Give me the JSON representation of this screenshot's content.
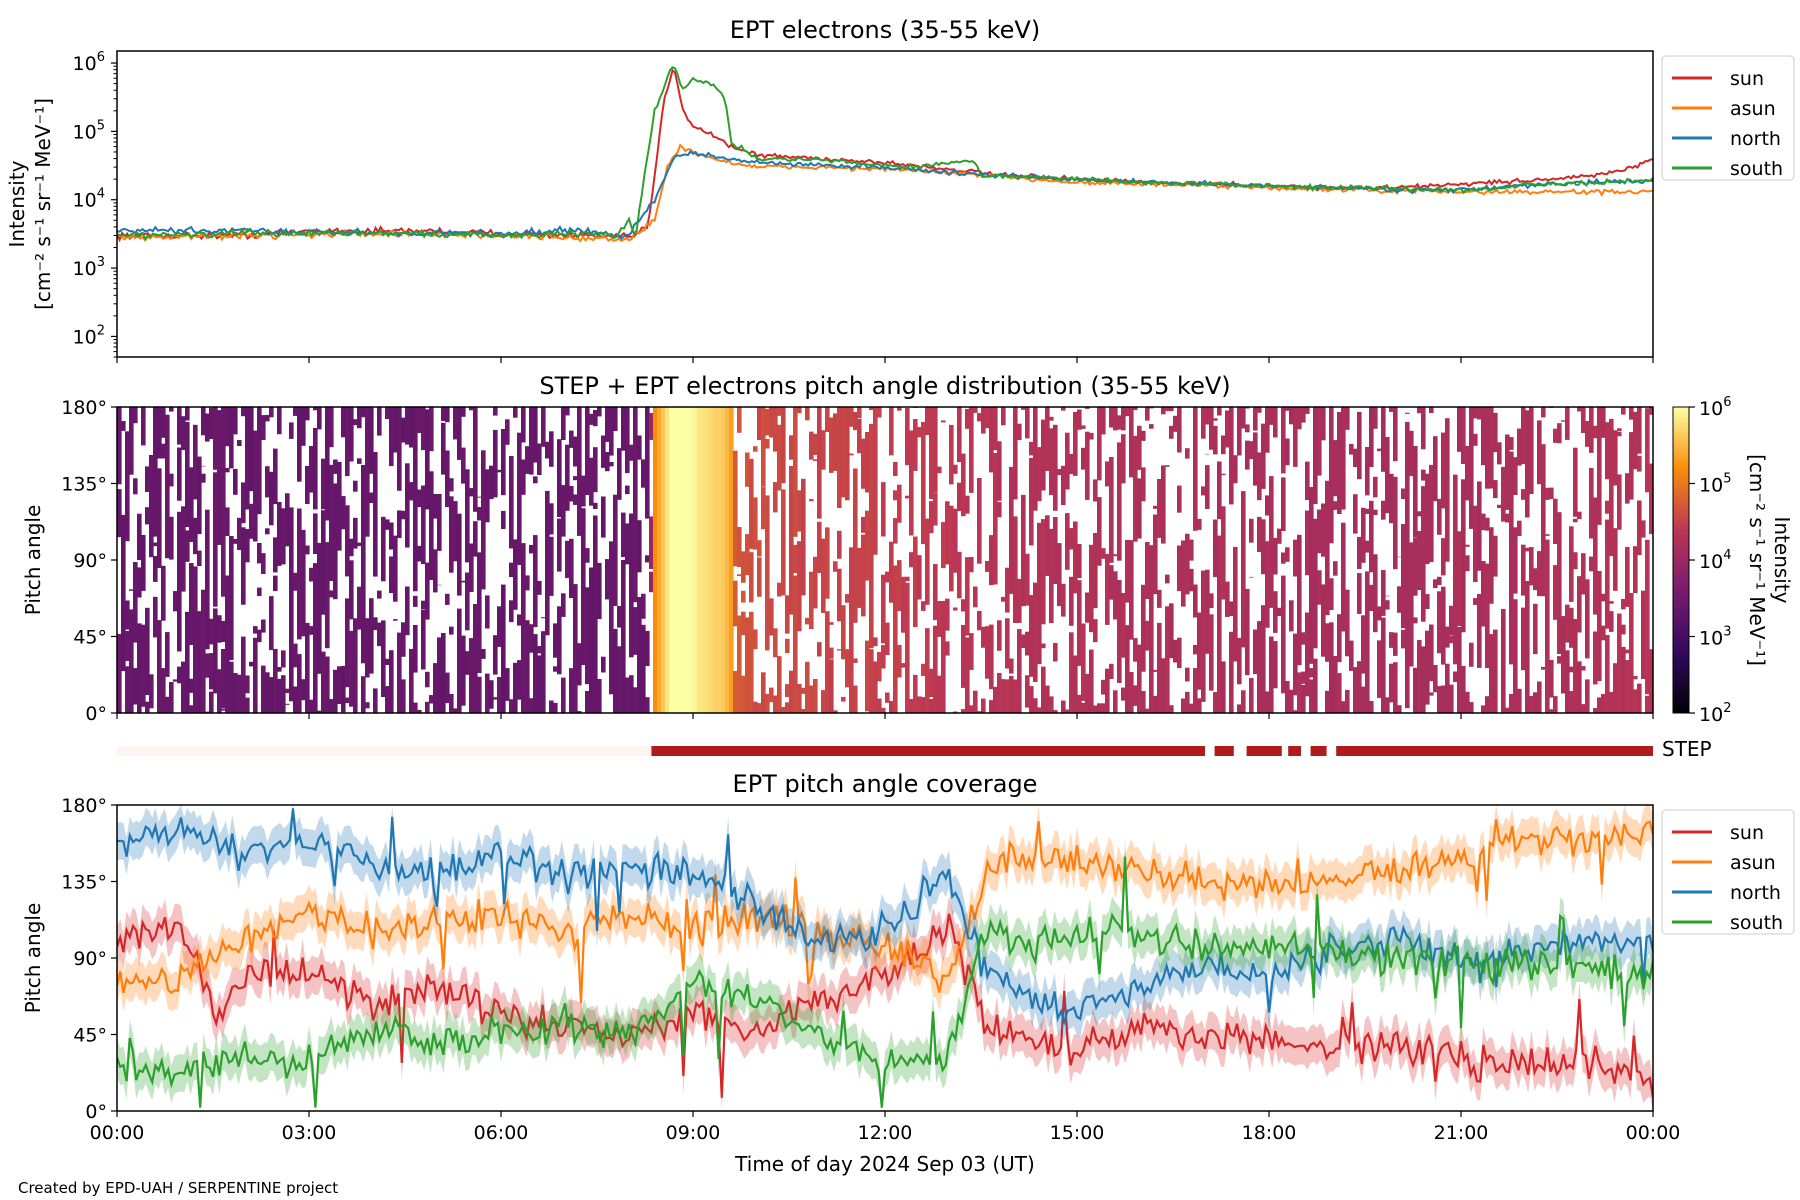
{
  "footer": "Created by EPD-UAH / SERPENTINE project",
  "chart_data": [
    {
      "type": "line",
      "title": "EPT electrons (35-55 keV)",
      "ylabel_line1": "Intensity",
      "ylabel_line2": "[cm⁻² s⁻¹ sr⁻¹ MeV⁻¹]",
      "yscale": "log",
      "ylim": [
        50,
        1500000
      ],
      "yticks": [
        {
          "v": 100,
          "b": "10",
          "e": "2"
        },
        {
          "v": 1000,
          "b": "10",
          "e": "3"
        },
        {
          "v": 10000,
          "b": "10",
          "e": "4"
        },
        {
          "v": 100000,
          "b": "10",
          "e": "5"
        },
        {
          "v": 1000000,
          "b": "10",
          "e": "6"
        }
      ],
      "xlim_hours": [
        0,
        24
      ],
      "legend_position": "outside-right",
      "series": [
        {
          "name": "sun",
          "color": "#d62728",
          "points": [
            [
              0,
              3000
            ],
            [
              2,
              3000
            ],
            [
              3,
              3500
            ],
            [
              4,
              3500
            ],
            [
              5,
              3500
            ],
            [
              6,
              3200
            ],
            [
              7,
              3000
            ],
            [
              8,
              2800
            ],
            [
              8.3,
              4000
            ],
            [
              8.55,
              300000
            ],
            [
              8.7,
              900000
            ],
            [
              8.85,
              200000
            ],
            [
              9,
              120000
            ],
            [
              9.3,
              90000
            ],
            [
              9.6,
              60000
            ],
            [
              10,
              45000
            ],
            [
              11,
              40000
            ],
            [
              12,
              35000
            ],
            [
              13,
              28000
            ],
            [
              14,
              22000
            ],
            [
              15,
              20000
            ],
            [
              16,
              18000
            ],
            [
              17,
              17000
            ],
            [
              18,
              16000
            ],
            [
              19,
              15000
            ],
            [
              20,
              15000
            ],
            [
              21,
              17000
            ],
            [
              22,
              19000
            ],
            [
              23,
              22000
            ],
            [
              23.6,
              28000
            ],
            [
              24,
              38000
            ]
          ]
        },
        {
          "name": "asun",
          "color": "#ff7f0e",
          "points": [
            [
              0,
              2800
            ],
            [
              2,
              3000
            ],
            [
              4,
              3200
            ],
            [
              6,
              3000
            ],
            [
              8,
              2600
            ],
            [
              8.4,
              5000
            ],
            [
              8.6,
              30000
            ],
            [
              8.8,
              60000
            ],
            [
              9,
              50000
            ],
            [
              9.3,
              40000
            ],
            [
              9.6,
              35000
            ],
            [
              10,
              30000
            ],
            [
              11,
              30000
            ],
            [
              12,
              28000
            ],
            [
              13,
              25000
            ],
            [
              14,
              21000
            ],
            [
              15,
              18000
            ],
            [
              16,
              17000
            ],
            [
              17,
              16000
            ],
            [
              18,
              15000
            ],
            [
              19,
              14000
            ],
            [
              20,
              13500
            ],
            [
              21,
              13000
            ],
            [
              22,
              13000
            ],
            [
              23,
              13000
            ],
            [
              24,
              13000
            ]
          ]
        },
        {
          "name": "north",
          "color": "#1f77b4",
          "points": [
            [
              0,
              3500
            ],
            [
              2,
              3500
            ],
            [
              4,
              3300
            ],
            [
              6,
              3200
            ],
            [
              7,
              3600
            ],
            [
              8,
              3000
            ],
            [
              8.4,
              10000
            ],
            [
              8.7,
              40000
            ],
            [
              9,
              50000
            ],
            [
              9.5,
              40000
            ],
            [
              10,
              35000
            ],
            [
              11,
              32000
            ],
            [
              12,
              30000
            ],
            [
              13,
              25000
            ],
            [
              14,
              22000
            ],
            [
              15,
              20000
            ],
            [
              16,
              18000
            ],
            [
              17,
              17000
            ],
            [
              18,
              16000
            ],
            [
              19,
              15000
            ],
            [
              20,
              14000
            ],
            [
              21,
              14000
            ],
            [
              22,
              16000
            ],
            [
              23,
              18000
            ],
            [
              24,
              19000
            ]
          ]
        },
        {
          "name": "south",
          "color": "#2ca02c",
          "points": [
            [
              0,
              3000
            ],
            [
              2,
              3200
            ],
            [
              4,
              3300
            ],
            [
              6,
              3000
            ],
            [
              7,
              3200
            ],
            [
              7.8,
              3000
            ],
            [
              8,
              5000
            ],
            [
              8.1,
              3000
            ],
            [
              8.4,
              200000
            ],
            [
              8.7,
              1000000
            ],
            [
              8.85,
              400000
            ],
            [
              9,
              600000
            ],
            [
              9.3,
              500000
            ],
            [
              9.5,
              300000
            ],
            [
              9.6,
              70000
            ],
            [
              10,
              40000
            ],
            [
              11,
              38000
            ],
            [
              12,
              32000
            ],
            [
              12.5,
              30000
            ],
            [
              13,
              35000
            ],
            [
              13.4,
              38000
            ],
            [
              13.5,
              22000
            ],
            [
              14,
              22000
            ],
            [
              15,
              20000
            ],
            [
              16,
              18000
            ],
            [
              17,
              17000
            ],
            [
              18,
              16000
            ],
            [
              19,
              15000
            ],
            [
              20,
              14500
            ],
            [
              21,
              14000
            ],
            [
              21.6,
              15000
            ],
            [
              22,
              17000
            ],
            [
              23,
              17000
            ],
            [
              24,
              20000
            ]
          ]
        }
      ]
    },
    {
      "type": "heatmap",
      "title": "STEP + EPT electrons pitch angle distribution (35-55 keV)",
      "ylabel": "Pitch angle",
      "ylim_deg": [
        0,
        180
      ],
      "yticklabels": [
        "0°",
        "45°",
        "90°",
        "135°",
        "180°"
      ],
      "xlim_hours": [
        0,
        24
      ],
      "colorbar": {
        "label_line1": "Intensity",
        "label_line2": "[cm⁻² s⁻¹ sr⁻¹ MeV⁻¹]",
        "scale": "log",
        "range": [
          100,
          1000000
        ],
        "ticks": [
          {
            "b": "10",
            "e": "2"
          },
          {
            "b": "10",
            "e": "3"
          },
          {
            "b": "10",
            "e": "4"
          },
          {
            "b": "10",
            "e": "5"
          },
          {
            "b": "10",
            "e": "6"
          }
        ]
      },
      "intensity_profile": [
        [
          0,
          2500
        ],
        [
          8.3,
          2500
        ],
        [
          8.4,
          40000
        ],
        [
          8.7,
          350000
        ],
        [
          9,
          200000
        ],
        [
          9.4,
          120000
        ],
        [
          9.6,
          55000
        ],
        [
          10,
          40000
        ],
        [
          12,
          30000
        ],
        [
          13,
          25000
        ],
        [
          14,
          20000
        ],
        [
          16,
          17000
        ],
        [
          18,
          15000
        ],
        [
          20,
          14000
        ],
        [
          22,
          16000
        ],
        [
          24,
          20000
        ]
      ]
    },
    {
      "type": "bar",
      "label": "STEP",
      "coverage_gaps_hours": [
        [
          17.0,
          17.15
        ],
        [
          17.45,
          17.65
        ],
        [
          18.2,
          18.3
        ],
        [
          18.5,
          18.65
        ],
        [
          18.9,
          19.05
        ]
      ],
      "active_from_hours": 8.35,
      "active_color": "#b01b1b",
      "inactive_color": "#fff4ef"
    },
    {
      "type": "line",
      "title": "EPT pitch angle coverage",
      "ylabel": "Pitch angle",
      "ylim_deg": [
        0,
        180
      ],
      "yticklabels": [
        "0°",
        "45°",
        "90°",
        "135°",
        "180°"
      ],
      "xlabel": "Time of day 2024 Sep 03 (UT)",
      "xticklabels": [
        "00:00",
        "03:00",
        "06:00",
        "09:00",
        "12:00",
        "15:00",
        "18:00",
        "21:00",
        "00:00"
      ],
      "legend_position": "outside-right",
      "series": [
        {
          "name": "sun",
          "color": "#d62728",
          "points": [
            [
              0,
              100
            ],
            [
              1,
              110
            ],
            [
              1.5,
              60
            ],
            [
              2,
              75
            ],
            [
              3,
              85
            ],
            [
              4,
              60
            ],
            [
              5,
              75
            ],
            [
              6,
              55
            ],
            [
              7,
              50
            ],
            [
              8,
              45
            ],
            [
              9,
              60
            ],
            [
              10,
              45
            ],
            [
              11,
              65
            ],
            [
              12,
              80
            ],
            [
              13,
              110
            ],
            [
              13.6,
              50
            ],
            [
              14,
              45
            ],
            [
              15,
              35
            ],
            [
              16,
              50
            ],
            [
              17,
              45
            ],
            [
              18,
              40
            ],
            [
              19,
              35
            ],
            [
              20,
              40
            ],
            [
              21,
              30
            ],
            [
              22,
              25
            ],
            [
              23,
              30
            ],
            [
              24,
              20
            ]
          ]
        },
        {
          "name": "asun",
          "color": "#ff7f0e",
          "points": [
            [
              0,
              75
            ],
            [
              1,
              80
            ],
            [
              2,
              100
            ],
            [
              3,
              120
            ],
            [
              4,
              105
            ],
            [
              5,
              110
            ],
            [
              6,
              115
            ],
            [
              7,
              105
            ],
            [
              8,
              115
            ],
            [
              9,
              110
            ],
            [
              10,
              115
            ],
            [
              11,
              105
            ],
            [
              12,
              95
            ],
            [
              13,
              80
            ],
            [
              13.6,
              140
            ],
            [
              14,
              150
            ],
            [
              15,
              145
            ],
            [
              16,
              140
            ],
            [
              17,
              135
            ],
            [
              18,
              130
            ],
            [
              19,
              135
            ],
            [
              20,
              140
            ],
            [
              21,
              150
            ],
            [
              22,
              160
            ],
            [
              23,
              160
            ],
            [
              24,
              165
            ]
          ]
        },
        {
          "name": "north",
          "color": "#1f77b4",
          "points": [
            [
              0,
              160
            ],
            [
              1,
              165
            ],
            [
              2,
              150
            ],
            [
              3,
              160
            ],
            [
              4,
              145
            ],
            [
              5,
              140
            ],
            [
              6,
              150
            ],
            [
              7,
              140
            ],
            [
              8,
              145
            ],
            [
              9,
              140
            ],
            [
              10,
              120
            ],
            [
              11,
              100
            ],
            [
              12,
              105
            ],
            [
              13,
              140
            ],
            [
              13.6,
              80
            ],
            [
              14,
              70
            ],
            [
              15,
              60
            ],
            [
              16,
              75
            ],
            [
              17,
              85
            ],
            [
              18,
              80
            ],
            [
              19,
              95
            ],
            [
              20,
              100
            ],
            [
              21,
              90
            ],
            [
              22,
              95
            ],
            [
              23,
              100
            ],
            [
              24,
              100
            ]
          ]
        },
        {
          "name": "south",
          "color": "#2ca02c",
          "points": [
            [
              0,
              25
            ],
            [
              1,
              25
            ],
            [
              2,
              30
            ],
            [
              3,
              30
            ],
            [
              4,
              45
            ],
            [
              5,
              40
            ],
            [
              6,
              45
            ],
            [
              7,
              50
            ],
            [
              8,
              45
            ],
            [
              9,
              75
            ],
            [
              10,
              65
            ],
            [
              11,
              45
            ],
            [
              12,
              30
            ],
            [
              13,
              35
            ],
            [
              13.6,
              110
            ],
            [
              14,
              100
            ],
            [
              15,
              105
            ],
            [
              16,
              105
            ],
            [
              17,
              95
            ],
            [
              18,
              100
            ],
            [
              19,
              95
            ],
            [
              20,
              90
            ],
            [
              21,
              90
            ],
            [
              22,
              85
            ],
            [
              23,
              85
            ],
            [
              24,
              80
            ]
          ]
        }
      ]
    }
  ]
}
